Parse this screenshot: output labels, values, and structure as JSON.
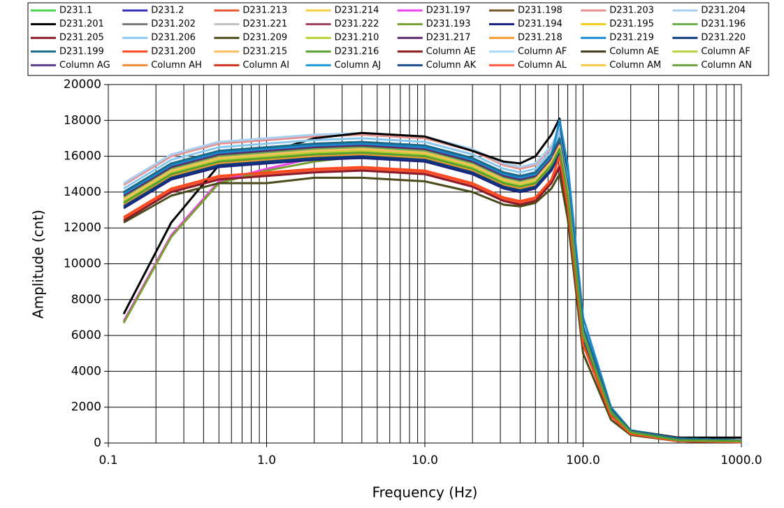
{
  "chart_data": {
    "type": "line",
    "x_label": "Frequency (Hz)",
    "y_label": "Amplitude (cnt)",
    "x_log": true,
    "grid": true,
    "legend": "top",
    "x": [
      0.125,
      0.25,
      0.5,
      1,
      2,
      4,
      10,
      20,
      31.5,
      40,
      50,
      63,
      71,
      80,
      100,
      150,
      200,
      400,
      1000
    ],
    "xlim": [
      0.1,
      1000
    ],
    "xticks": [
      0.1,
      {
        "value": 1,
        "label": "1.0"
      },
      {
        "value": 10,
        "label": "10.0"
      },
      {
        "value": 100,
        "label": "100.0"
      },
      {
        "value": 1000,
        "label": "1000.0"
      }
    ],
    "xminorticks": [
      0.2,
      0.3,
      0.4,
      0.5,
      0.6,
      0.7,
      0.8,
      0.9,
      2,
      3,
      4,
      5,
      6,
      7,
      8,
      9,
      20,
      30,
      40,
      50,
      60,
      70,
      80,
      90,
      200,
      300,
      400,
      500,
      600,
      700,
      800,
      900
    ],
    "ylim": [
      0,
      20000
    ],
    "yticks": [
      0,
      2000,
      4000,
      6000,
      8000,
      10000,
      12000,
      14000,
      16000,
      18000,
      20000
    ],
    "series": [
      {
        "name": "D231.1",
        "color": "#4cd94c",
        "values": [
          13800,
          15400,
          16100,
          16300,
          16500,
          16600,
          16400,
          15700,
          14900,
          14700,
          14900,
          15900,
          16800,
          14200,
          6000,
          1700,
          600,
          150,
          100
        ]
      },
      {
        "name": "D231.2",
        "color": "#3333bb",
        "values": [
          13300,
          14900,
          15600,
          15800,
          16000,
          16100,
          15900,
          15200,
          14400,
          14200,
          14400,
          15400,
          16300,
          13700,
          6000,
          1700,
          600,
          150,
          100
        ]
      },
      {
        "name": "D231.213",
        "color": "#ee5533",
        "values": [
          12500,
          14100,
          14800,
          15000,
          15200,
          15300,
          15100,
          14400,
          13600,
          13400,
          13600,
          14600,
          15500,
          12900,
          5500,
          1500,
          500,
          100,
          50
        ]
      },
      {
        "name": "D231.214",
        "color": "#f5d040",
        "values": [
          13600,
          15200,
          15900,
          16100,
          16300,
          16400,
          16200,
          15500,
          14700,
          14500,
          14700,
          15700,
          16600,
          14000,
          6000,
          1700,
          600,
          150,
          100
        ]
      },
      {
        "name": "D231.197",
        "color": "#ee44ee",
        "values": [
          6800,
          11600,
          14600,
          15300,
          15900,
          16100,
          16000,
          15400,
          14500,
          14300,
          14500,
          15500,
          16700,
          14000,
          6000,
          1700,
          600,
          150,
          100
        ]
      },
      {
        "name": "D231.198",
        "color": "#7a5a2a",
        "values": [
          13500,
          15100,
          15800,
          16000,
          16200,
          16300,
          16100,
          15400,
          14600,
          14400,
          14600,
          15600,
          16500,
          13900,
          6000,
          1700,
          600,
          150,
          100
        ]
      },
      {
        "name": "D231.203",
        "color": "#e89090",
        "values": [
          14400,
          16000,
          16700,
          16900,
          17100,
          17200,
          17000,
          16300,
          15500,
          15300,
          15500,
          16500,
          17400,
          14800,
          6500,
          1900,
          700,
          250,
          150
        ]
      },
      {
        "name": "D231.204",
        "color": "#a8d0f0",
        "values": [
          14500,
          16100,
          16800,
          17000,
          17200,
          17300,
          17100,
          16400,
          15600,
          15400,
          15600,
          16600,
          17500,
          14900,
          6500,
          1900,
          700,
          250,
          150
        ]
      },
      {
        "name": "D231.201",
        "color": "#000000",
        "values": [
          7200,
          12300,
          15500,
          16200,
          17000,
          17300,
          17100,
          16300,
          15700,
          15600,
          16000,
          17200,
          18100,
          14500,
          6200,
          1800,
          700,
          300,
          300
        ]
      },
      {
        "name": "D231.202",
        "color": "#777777",
        "values": [
          14000,
          15600,
          16300,
          16500,
          16700,
          16800,
          16600,
          15900,
          15100,
          14900,
          15100,
          16100,
          17000,
          14400,
          6500,
          1900,
          700,
          250,
          150
        ]
      },
      {
        "name": "D231.221",
        "color": "#c0c0c0",
        "values": [
          13700,
          15300,
          16000,
          16200,
          16400,
          16500,
          16300,
          15600,
          14800,
          14600,
          14800,
          15800,
          16700,
          14100,
          6000,
          1700,
          600,
          150,
          100
        ]
      },
      {
        "name": "D231.222",
        "color": "#a04060",
        "values": [
          13900,
          15500,
          16200,
          16400,
          16600,
          16700,
          16500,
          15800,
          15000,
          14800,
          15000,
          16000,
          16900,
          14300,
          6000,
          1700,
          600,
          150,
          100
        ]
      },
      {
        "name": "D231.193",
        "color": "#77a030",
        "values": [
          6700,
          11500,
          14500,
          15200,
          15700,
          16000,
          15900,
          15300,
          14500,
          14300,
          14500,
          15600,
          16800,
          14200,
          6300,
          1800,
          600,
          150,
          100
        ]
      },
      {
        "name": "D231.194",
        "color": "#1a237e",
        "values": [
          13100,
          14700,
          15400,
          15600,
          15800,
          15900,
          15700,
          15000,
          14200,
          14000,
          14200,
          15200,
          16100,
          13500,
          5800,
          1600,
          550,
          150,
          100
        ]
      },
      {
        "name": "D231.195",
        "color": "#f2d020",
        "values": [
          13400,
          15000,
          15700,
          15900,
          16100,
          16200,
          16000,
          15300,
          14500,
          14300,
          14500,
          15500,
          16400,
          13800,
          6000,
          1700,
          600,
          150,
          100
        ]
      },
      {
        "name": "D231.196",
        "color": "#6ab04c",
        "values": [
          13700,
          15300,
          16000,
          16200,
          16400,
          16500,
          16300,
          15600,
          14800,
          14600,
          14800,
          15800,
          16700,
          14100,
          6000,
          1700,
          600,
          150,
          100
        ]
      },
      {
        "name": "D231.205",
        "color": "#8b1a2b",
        "values": [
          12400,
          14000,
          14700,
          14900,
          15100,
          15200,
          15000,
          14300,
          13500,
          13300,
          13500,
          14500,
          15400,
          12800,
          5500,
          1500,
          500,
          100,
          50
        ]
      },
      {
        "name": "D231.206",
        "color": "#88c8f0",
        "values": [
          14200,
          15800,
          16500,
          16700,
          16900,
          17000,
          16800,
          16100,
          15300,
          15100,
          15300,
          16300,
          17200,
          14600,
          6500,
          1900,
          700,
          250,
          150
        ]
      },
      {
        "name": "D231.209",
        "color": "#4a4a1a",
        "values": [
          12300,
          13800,
          14500,
          14500,
          14800,
          14800,
          14600,
          14000,
          13300,
          13200,
          13400,
          14200,
          15000,
          12500,
          5000,
          1300,
          450,
          100,
          50
        ]
      },
      {
        "name": "D231.210",
        "color": "#b8d030",
        "values": [
          13500,
          15100,
          15800,
          16000,
          16200,
          16300,
          16100,
          15400,
          14600,
          14400,
          14600,
          15600,
          16500,
          13900,
          6000,
          1700,
          600,
          150,
          100
        ]
      },
      {
        "name": "D231.217",
        "color": "#5a2a6a",
        "values": [
          13800,
          15400,
          16100,
          16300,
          16500,
          16600,
          16400,
          15700,
          14900,
          14700,
          14900,
          15900,
          16800,
          14200,
          6000,
          1700,
          600,
          150,
          100
        ]
      },
      {
        "name": "D231.218",
        "color": "#f09a30",
        "values": [
          13300,
          14900,
          15600,
          15800,
          16000,
          16100,
          15900,
          15200,
          14400,
          14200,
          14400,
          15400,
          16300,
          13700,
          6000,
          1700,
          600,
          150,
          100
        ]
      },
      {
        "name": "D231.219",
        "color": "#1a8ad0",
        "values": [
          13900,
          15500,
          16200,
          16400,
          16600,
          16700,
          16500,
          15800,
          15000,
          14800,
          15000,
          16000,
          18000,
          15500,
          7000,
          2000,
          700,
          250,
          150
        ]
      },
      {
        "name": "D231.220",
        "color": "#0a3a7a",
        "values": [
          13200,
          14800,
          15500,
          15700,
          15900,
          16000,
          15800,
          15100,
          14300,
          14100,
          14300,
          15300,
          16200,
          13600,
          5800,
          1600,
          550,
          150,
          100
        ]
      },
      {
        "name": "D231.199",
        "color": "#1a6a8a",
        "values": [
          14000,
          15600,
          16300,
          16500,
          16700,
          16800,
          16600,
          15900,
          15100,
          14900,
          15100,
          16100,
          17000,
          14400,
          6500,
          1900,
          700,
          250,
          150
        ]
      },
      {
        "name": "D231.200",
        "color": "#ff4a20",
        "values": [
          12600,
          14200,
          14900,
          15100,
          15300,
          15400,
          15200,
          14500,
          13700,
          13500,
          13700,
          14700,
          16000,
          13200,
          5500,
          1500,
          500,
          100,
          50
        ]
      },
      {
        "name": "D231.215",
        "color": "#f8c060",
        "values": [
          13600,
          15200,
          15900,
          16100,
          16300,
          16400,
          16200,
          15500,
          14700,
          14500,
          14700,
          15700,
          16600,
          14000,
          6000,
          1700,
          600,
          150,
          100
        ]
      },
      {
        "name": "D231.216",
        "color": "#5aa030",
        "values": [
          13400,
          15000,
          15700,
          15900,
          16100,
          16200,
          16000,
          15300,
          14500,
          14300,
          14500,
          15500,
          16400,
          13800,
          6000,
          1700,
          600,
          150,
          100
        ]
      },
      {
        "name": "Column AE",
        "color": "#8b1a1a",
        "values": [
          null,
          null,
          null,
          null,
          null,
          null,
          null,
          null,
          null,
          null,
          null,
          null,
          null,
          null,
          null,
          null,
          null,
          null,
          null
        ]
      },
      {
        "name": "Column AF",
        "color": "#a8d8f8",
        "values": [
          null,
          null,
          null,
          null,
          null,
          null,
          null,
          null,
          null,
          null,
          null,
          null,
          null,
          null,
          null,
          null,
          null,
          null,
          null
        ]
      },
      {
        "name": "Column AE",
        "color": "#3a3a1a",
        "values": [
          null,
          null,
          null,
          null,
          null,
          null,
          null,
          null,
          null,
          null,
          null,
          null,
          null,
          null,
          null,
          null,
          null,
          null,
          null
        ]
      },
      {
        "name": "Column AF",
        "color": "#b8d040",
        "values": [
          null,
          null,
          null,
          null,
          null,
          null,
          null,
          null,
          null,
          null,
          null,
          null,
          null,
          null,
          null,
          null,
          null,
          null,
          null
        ]
      },
      {
        "name": "Column AG",
        "color": "#5a3a8a",
        "values": [
          null,
          null,
          null,
          null,
          null,
          null,
          null,
          null,
          null,
          null,
          null,
          null,
          null,
          null,
          null,
          null,
          null,
          null,
          null
        ]
      },
      {
        "name": "Column AH",
        "color": "#f08a30",
        "values": [
          null,
          null,
          null,
          null,
          null,
          null,
          null,
          null,
          null,
          null,
          null,
          null,
          null,
          null,
          null,
          null,
          null,
          null,
          null
        ]
      },
      {
        "name": "Column AI",
        "color": "#d03020",
        "values": [
          null,
          null,
          null,
          null,
          null,
          null,
          null,
          null,
          null,
          null,
          null,
          null,
          null,
          null,
          null,
          null,
          null,
          null,
          null
        ]
      },
      {
        "name": "Column AJ",
        "color": "#1a9ad8",
        "values": [
          null,
          null,
          null,
          null,
          null,
          null,
          null,
          null,
          null,
          null,
          null,
          null,
          null,
          null,
          null,
          null,
          null,
          null,
          null
        ]
      },
      {
        "name": "Column AK",
        "color": "#1a4a8a",
        "values": [
          null,
          null,
          null,
          null,
          null,
          null,
          null,
          null,
          null,
          null,
          null,
          null,
          null,
          null,
          null,
          null,
          null,
          null,
          null
        ]
      },
      {
        "name": "Column AL",
        "color": "#ff5a40",
        "values": [
          null,
          null,
          null,
          null,
          null,
          null,
          null,
          null,
          null,
          null,
          null,
          null,
          null,
          null,
          null,
          null,
          null,
          null,
          null
        ]
      },
      {
        "name": "Column AM",
        "color": "#f8c840",
        "values": [
          null,
          null,
          null,
          null,
          null,
          null,
          null,
          null,
          null,
          null,
          null,
          null,
          null,
          null,
          null,
          null,
          null,
          null,
          null
        ]
      },
      {
        "name": "Column AN",
        "color": "#6aa040",
        "values": [
          null,
          null,
          null,
          null,
          null,
          null,
          null,
          null,
          null,
          null,
          null,
          null,
          null,
          null,
          null,
          null,
          null,
          null,
          null
        ]
      }
    ]
  }
}
